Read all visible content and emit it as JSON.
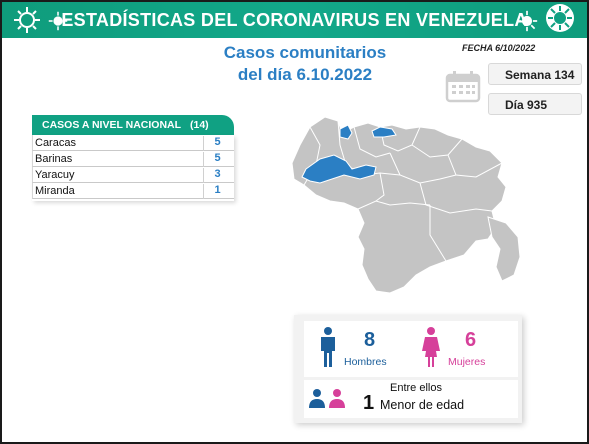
{
  "header": {
    "title": "ESTADÍSTICAS DEL CORONAVIRUS EN VENEZUELA",
    "icons": [
      "virus-icon",
      "virus-icon",
      "virus-icon",
      "virus-icon"
    ],
    "color": "#10a183"
  },
  "subtitle": {
    "line1": "Casos comunitarios",
    "line2": "del día 6.10.2022"
  },
  "fecha": "FECHA 6/10/2022",
  "calendar_icon": "calendar-icon",
  "semana": "Semana 134",
  "dia": "Día 935",
  "table": {
    "header_label": "CASOS A NIVEL NACIONAL",
    "header_total": "(14)",
    "rows": [
      {
        "name": "Caracas",
        "value": "5"
      },
      {
        "name": "Barinas",
        "value": "5"
      },
      {
        "name": "Yaracuy",
        "value": "3"
      },
      {
        "name": "Miranda",
        "value": "1"
      }
    ]
  },
  "map": {
    "highlight_color": "#2b7fc4",
    "base_color": "#c4c4c4"
  },
  "stats": {
    "hombres_count": "8",
    "hombres_label": "Hombres",
    "mujeres_count": "6",
    "mujeres_label": "Mujeres",
    "entre_label": "Entre ellos",
    "menor_count": "1",
    "menor_label": "Menor de edad",
    "hombres_color": "#1c5f9b",
    "mujeres_color": "#d6409a"
  }
}
